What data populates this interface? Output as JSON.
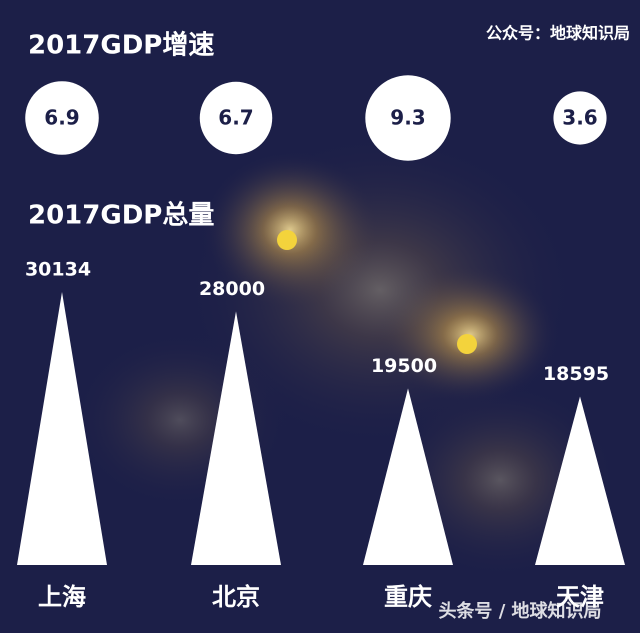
{
  "chart_data": [
    {
      "type": "bubble",
      "title": "2017GDP增速",
      "values": [
        6.9,
        6.7,
        9.3,
        3.6
      ],
      "color": "#ffffff"
    },
    {
      "type": "triangle",
      "title": "2017GDP总量",
      "categories": [
        "上海",
        "北京",
        "重庆",
        "天津"
      ],
      "values": [
        30134,
        28000,
        19500,
        18595
      ],
      "color": "#ffffff"
    }
  ],
  "watermark": "公众号：地球知识局",
  "footer": "头条号 / 地球知识局"
}
